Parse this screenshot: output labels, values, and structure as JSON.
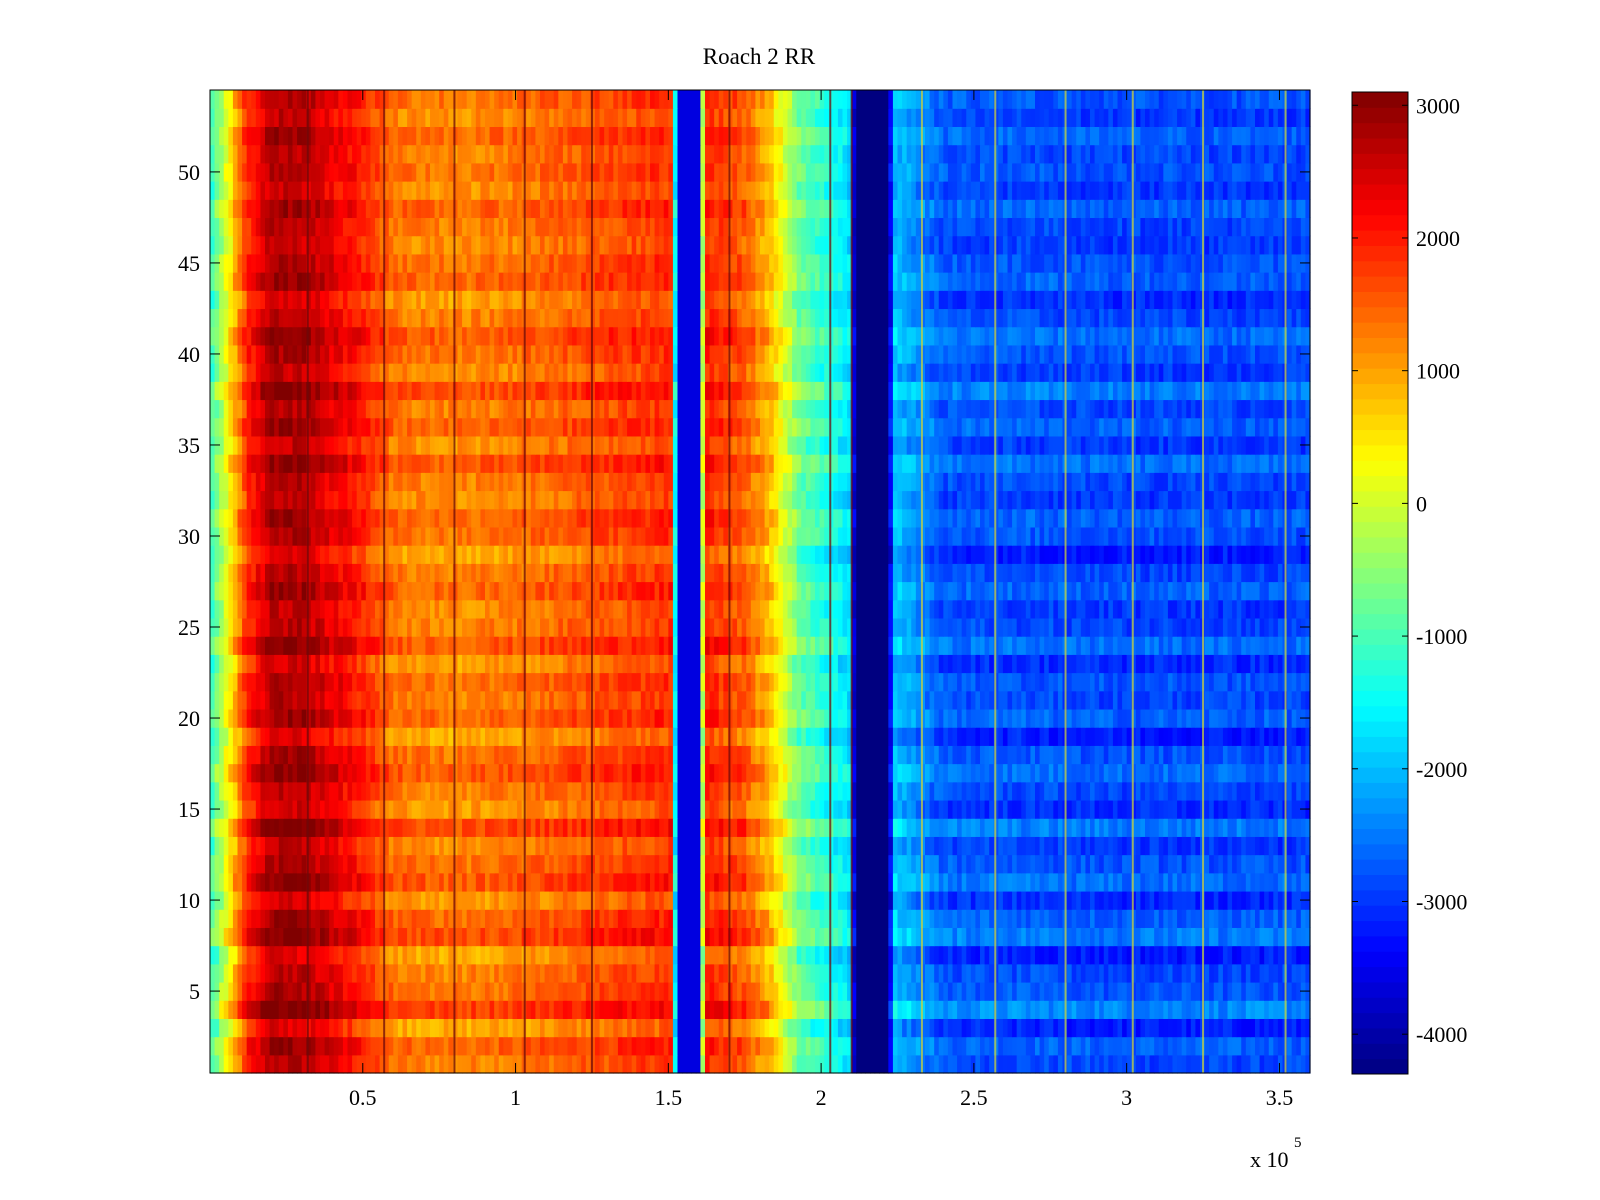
{
  "chart_data": {
    "type": "heatmap",
    "title": "Roach 2 RR",
    "xlabel": "",
    "ylabel": "",
    "x_multiplier_label": "x 10",
    "x_multiplier_exponent": "5",
    "xlim": [
      0,
      360000
    ],
    "ylim": [
      0.5,
      54.5
    ],
    "x_ticks": [
      {
        "value": 0.5,
        "label": "0.5"
      },
      {
        "value": 1,
        "label": "1"
      },
      {
        "value": 1.5,
        "label": "1.5"
      },
      {
        "value": 2,
        "label": "2"
      },
      {
        "value": 2.5,
        "label": "2.5"
      },
      {
        "value": 3,
        "label": "3"
      },
      {
        "value": 3.5,
        "label": "3.5"
      }
    ],
    "y_ticks": [
      {
        "value": 5,
        "label": "5"
      },
      {
        "value": 10,
        "label": "10"
      },
      {
        "value": 15,
        "label": "15"
      },
      {
        "value": 20,
        "label": "20"
      },
      {
        "value": 25,
        "label": "25"
      },
      {
        "value": 30,
        "label": "30"
      },
      {
        "value": 35,
        "label": "35"
      },
      {
        "value": 40,
        "label": "40"
      },
      {
        "value": 45,
        "label": "45"
      },
      {
        "value": 50,
        "label": "50"
      }
    ],
    "colorbar": {
      "colormap": "jet",
      "clim": [
        -4300,
        3100
      ],
      "ticks": [
        {
          "value": 3000,
          "label": "3000"
        },
        {
          "value": 2000,
          "label": "2000"
        },
        {
          "value": 1000,
          "label": "1000"
        },
        {
          "value": 0,
          "label": "0"
        },
        {
          "value": -1000,
          "label": "-1000"
        },
        {
          "value": -2000,
          "label": "-2000"
        },
        {
          "value": -3000,
          "label": "-3000"
        },
        {
          "value": -4000,
          "label": "-4000"
        }
      ]
    },
    "rows": 54,
    "x_profile": [
      {
        "x": 0,
        "value": -1200
      },
      {
        "x": 5000,
        "value": 0
      },
      {
        "x": 12000,
        "value": 1800
      },
      {
        "x": 20000,
        "value": 2700
      },
      {
        "x": 30000,
        "value": 2700
      },
      {
        "x": 40000,
        "value": 2300
      },
      {
        "x": 50000,
        "value": 1900
      },
      {
        "x": 60000,
        "value": 1300
      },
      {
        "x": 80000,
        "value": 1200
      },
      {
        "x": 100000,
        "value": 1300
      },
      {
        "x": 120000,
        "value": 1500
      },
      {
        "x": 140000,
        "value": 1700
      },
      {
        "x": 151000,
        "value": 1800
      },
      {
        "x": 153000,
        "value": -3600
      },
      {
        "x": 160000,
        "value": -3600
      },
      {
        "x": 162000,
        "value": 1900
      },
      {
        "x": 175000,
        "value": 1500
      },
      {
        "x": 183000,
        "value": 800
      },
      {
        "x": 193000,
        "value": -800
      },
      {
        "x": 210000,
        "value": -1800
      },
      {
        "x": 211000,
        "value": -4300
      },
      {
        "x": 222000,
        "value": -4300
      },
      {
        "x": 224000,
        "value": -2000
      },
      {
        "x": 240000,
        "value": -2800
      },
      {
        "x": 300000,
        "value": -2900
      },
      {
        "x": 360000,
        "value": -2900
      }
    ],
    "row_offsets": [
      0,
      200,
      -300,
      500,
      100,
      0,
      -300,
      400,
      200,
      -200,
      300,
      100,
      -100,
      400,
      -200,
      0,
      300,
      100,
      -300,
      200,
      0,
      100,
      -200,
      300,
      0,
      -100,
      200,
      0,
      -300,
      100,
      200,
      -100,
      0,
      300,
      -100,
      200,
      0,
      400,
      -100,
      100,
      300,
      0,
      -200,
      200,
      100,
      -100,
      0,
      200,
      -100,
      100,
      0,
      200,
      -100,
      100
    ],
    "vertical_lines_x": [
      32000,
      57000,
      80000,
      103000,
      125000,
      170000,
      203000,
      210000,
      233000,
      257000,
      280000,
      302000,
      325000,
      352000
    ]
  }
}
